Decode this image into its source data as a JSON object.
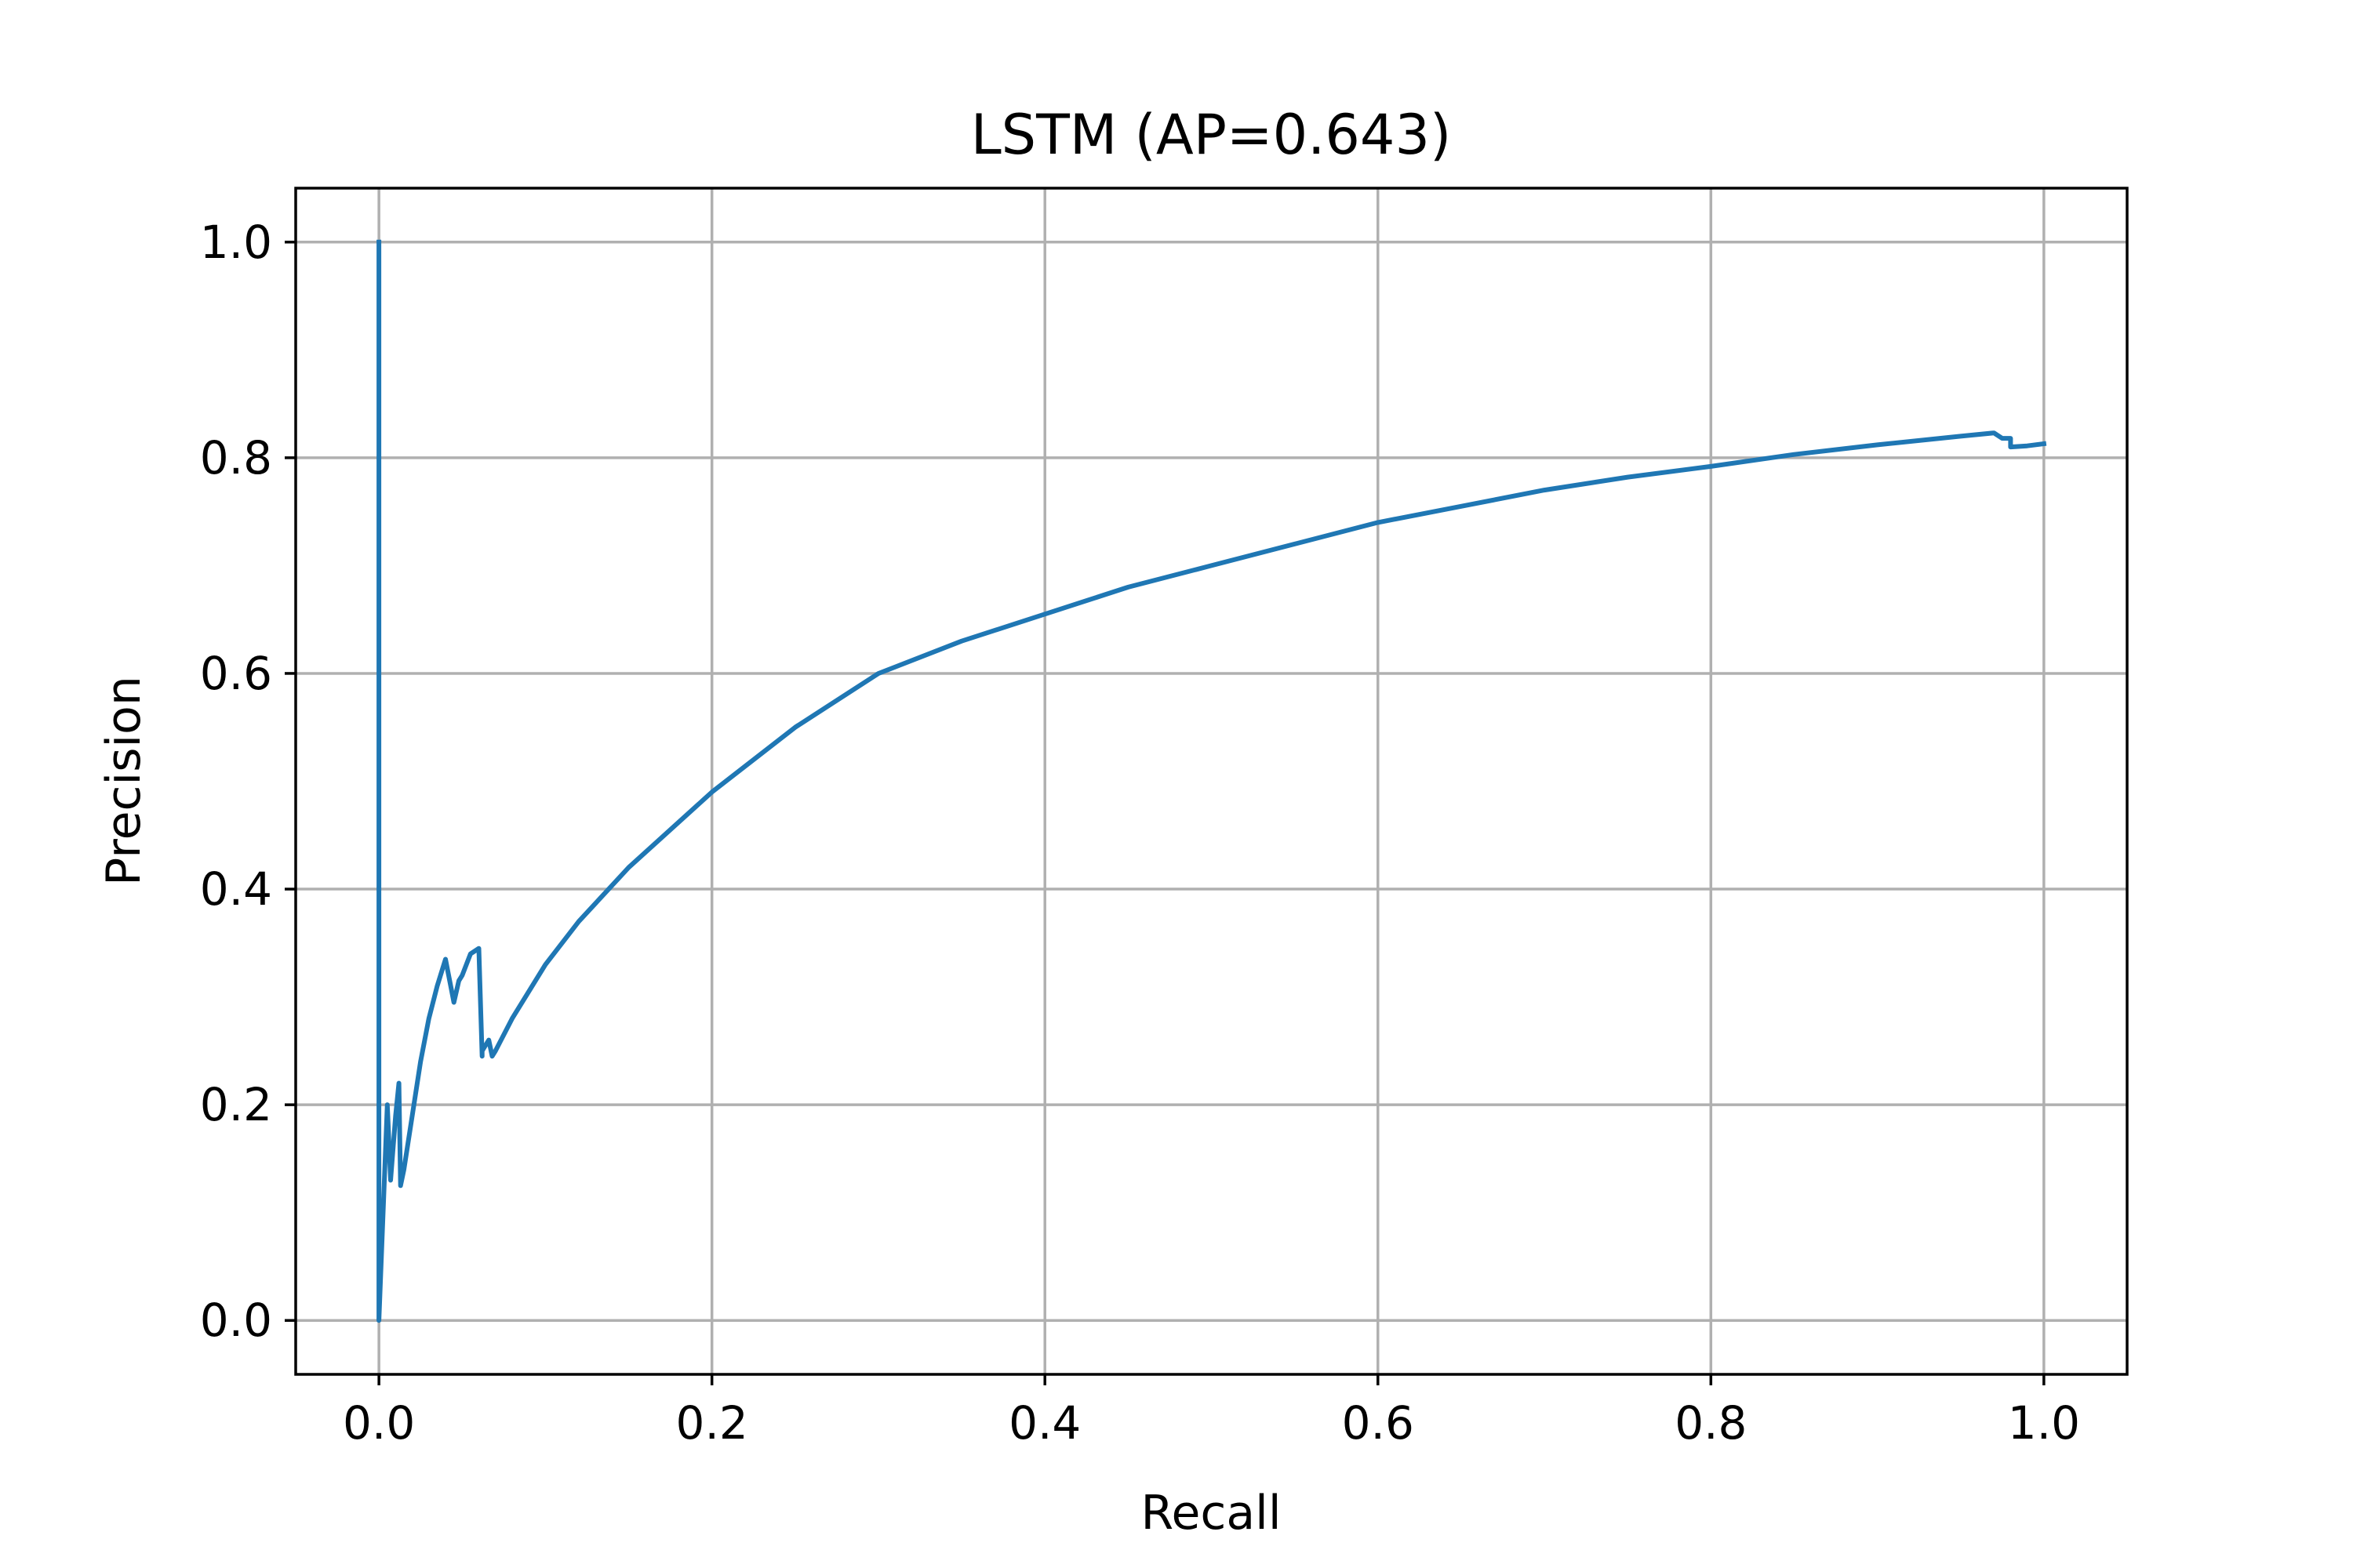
{
  "chart_data": {
    "type": "line",
    "title": "LSTM (AP=0.643)",
    "xlabel": "Recall",
    "ylabel": "Precision",
    "xlim": [
      -0.05,
      1.05
    ],
    "ylim": [
      -0.05,
      1.05
    ],
    "xticks": [
      0.0,
      0.2,
      0.4,
      0.6,
      0.8,
      1.0
    ],
    "yticks": [
      0.0,
      0.2,
      0.4,
      0.6,
      0.8,
      1.0
    ],
    "xtick_labels": [
      "0.0",
      "0.2",
      "0.4",
      "0.6",
      "0.8",
      "1.0"
    ],
    "ytick_labels": [
      "0.0",
      "0.2",
      "0.4",
      "0.6",
      "0.8",
      "1.0"
    ],
    "grid": true,
    "line_color": "#1f77b4",
    "grid_color": "#b0b0b0",
    "series": [
      {
        "x": [
          0.0,
          0.0,
          0.0,
          0.005,
          0.007,
          0.01,
          0.012,
          0.013,
          0.015,
          0.02,
          0.025,
          0.03,
          0.035,
          0.04,
          0.045,
          0.048,
          0.05,
          0.055,
          0.06,
          0.062,
          0.062,
          0.066,
          0.068,
          0.07,
          0.08,
          0.1,
          0.12,
          0.15,
          0.2,
          0.25,
          0.3,
          0.35,
          0.4,
          0.45,
          0.5,
          0.55,
          0.6,
          0.65,
          0.7,
          0.75,
          0.8,
          0.85,
          0.9,
          0.95,
          0.97,
          0.975,
          0.98,
          0.98,
          0.99,
          1.0
        ],
        "y": [
          1.0,
          0.0,
          0.0,
          0.2,
          0.13,
          0.19,
          0.22,
          0.125,
          0.14,
          0.19,
          0.24,
          0.28,
          0.31,
          0.335,
          0.295,
          0.315,
          0.32,
          0.34,
          0.345,
          0.245,
          0.25,
          0.26,
          0.245,
          0.25,
          0.28,
          0.33,
          0.37,
          0.42,
          0.49,
          0.55,
          0.6,
          0.63,
          0.655,
          0.68,
          0.7,
          0.72,
          0.74,
          0.755,
          0.77,
          0.782,
          0.792,
          0.803,
          0.812,
          0.82,
          0.823,
          0.818,
          0.818,
          0.81,
          0.811,
          0.813
        ]
      }
    ]
  }
}
